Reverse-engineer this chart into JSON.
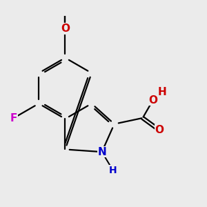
{
  "background_color": "#ebebeb",
  "bond_color": "#000000",
  "bond_width": 1.6,
  "atom_colors": {
    "F": "#cc00cc",
    "O": "#cc0000",
    "N": "#0000cc",
    "C": "#000000",
    "H": "#cc0000"
  },
  "font_size_atoms": 11,
  "font_size_small": 9,
  "figsize": [
    3.0,
    3.0
  ],
  "dpi": 100
}
